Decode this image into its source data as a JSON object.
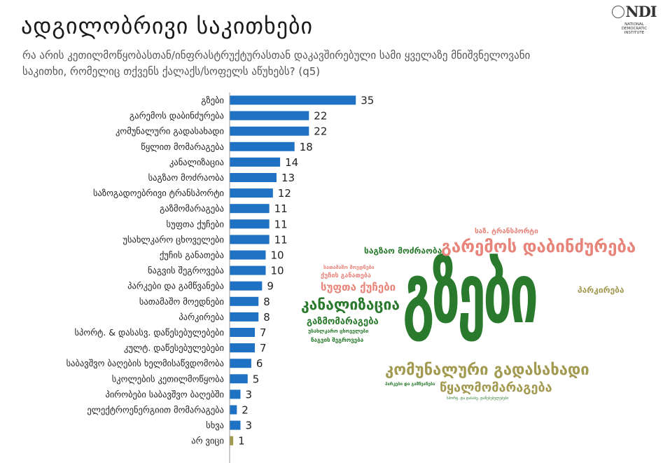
{
  "header": {
    "title": "ადგილობრივი საკითხები",
    "subtitle": "რა არის კეთილმოწყობასთან/ინფრასტრუქტურასთან დაკავშირებული სამი ყველაზე მნიშვნელოვანი საკითხი, რომელიც თქვენს ქალაქს/სოფელს აწუხებს? (q5)"
  },
  "logo": {
    "mark": "NDI",
    "sub": [
      "NATIONAL",
      "DEMOCRATIC",
      "INSTITUTE"
    ]
  },
  "colors": {
    "bar": "#1f72c3",
    "bar_other": "#a39a52",
    "label": "#222222"
  },
  "chart_data": {
    "type": "bar",
    "orientation": "horizontal",
    "categories": [
      "გზები",
      "გარემოს დაბინძურება",
      "კომუნალური გადასახადი",
      "წყლით მომარაგება",
      "კანალიზაცია",
      "საგზაო მოძრაობა",
      "საზოგადოებრივი ტრანსპორტი",
      "გაზმომარაგება",
      "სუფთა ქუჩები",
      "უსახლკარო ცხოველები",
      "ქუჩის განათება",
      "ნაგვის შეგროვება",
      "პარკები და გამწვანება",
      "სათამაშო მოედნები",
      "პარკირება",
      "სპორტ. & დასასვ. დაწესებულებები",
      "კულტ. დაწესებულებები",
      "საბავშვო ბაღების ხელმისაწვდომობა",
      "სკოლების კეთილმოწყობა",
      "პირობები საბავშვო ბაღებში",
      "ელექტროენერგიით მომარაგება",
      "სხვა",
      "არ ვიცი"
    ],
    "values": [
      35,
      22,
      22,
      18,
      14,
      13,
      12,
      11,
      11,
      11,
      10,
      10,
      9,
      8,
      8,
      7,
      7,
      6,
      5,
      3,
      2,
      3,
      1
    ],
    "highlight_index": 22,
    "xlim": [
      0,
      35
    ],
    "grid": false,
    "legend": "none"
  },
  "wordcloud": [
    {
      "text": "გზები",
      "color": "#2a7a2e"
    },
    {
      "text": "გარემოს დაბინძურება",
      "color": "#e8857a"
    },
    {
      "text": "კომუნალური გადასახადი",
      "color": "#a39a52"
    },
    {
      "text": "წყალმომარაგება",
      "color": "#a39a52"
    },
    {
      "text": "კანალიზაცია",
      "color": "#2a7a2e"
    },
    {
      "text": "სუფთა ქუჩები",
      "color": "#e8857a"
    },
    {
      "text": "გაზმომარაგება",
      "color": "#2a7a2e"
    },
    {
      "text": "საგზაო მოძრაობა",
      "color": "#2a7a2e"
    },
    {
      "text": "პარკირება",
      "color": "#a39a52"
    },
    {
      "text": "საზ. ტრანსპორტი",
      "color": "#e8857a"
    },
    {
      "text": "ქუჩის განათება",
      "color": "#e8857a"
    },
    {
      "text": "სათამაშო მოედნები",
      "color": "#e8857a"
    },
    {
      "text": "უსახლკარო ცხოველები",
      "color": "#2a7a2e"
    },
    {
      "text": "ნაგვის შეგროვება",
      "color": "#2a7a2e"
    },
    {
      "text": "პარკები და გამწვანება",
      "color": "#2a7a2e"
    },
    {
      "text": "სპორტ. და დასასვ. დაწესებულებები",
      "color": "#2a7a2e"
    }
  ]
}
